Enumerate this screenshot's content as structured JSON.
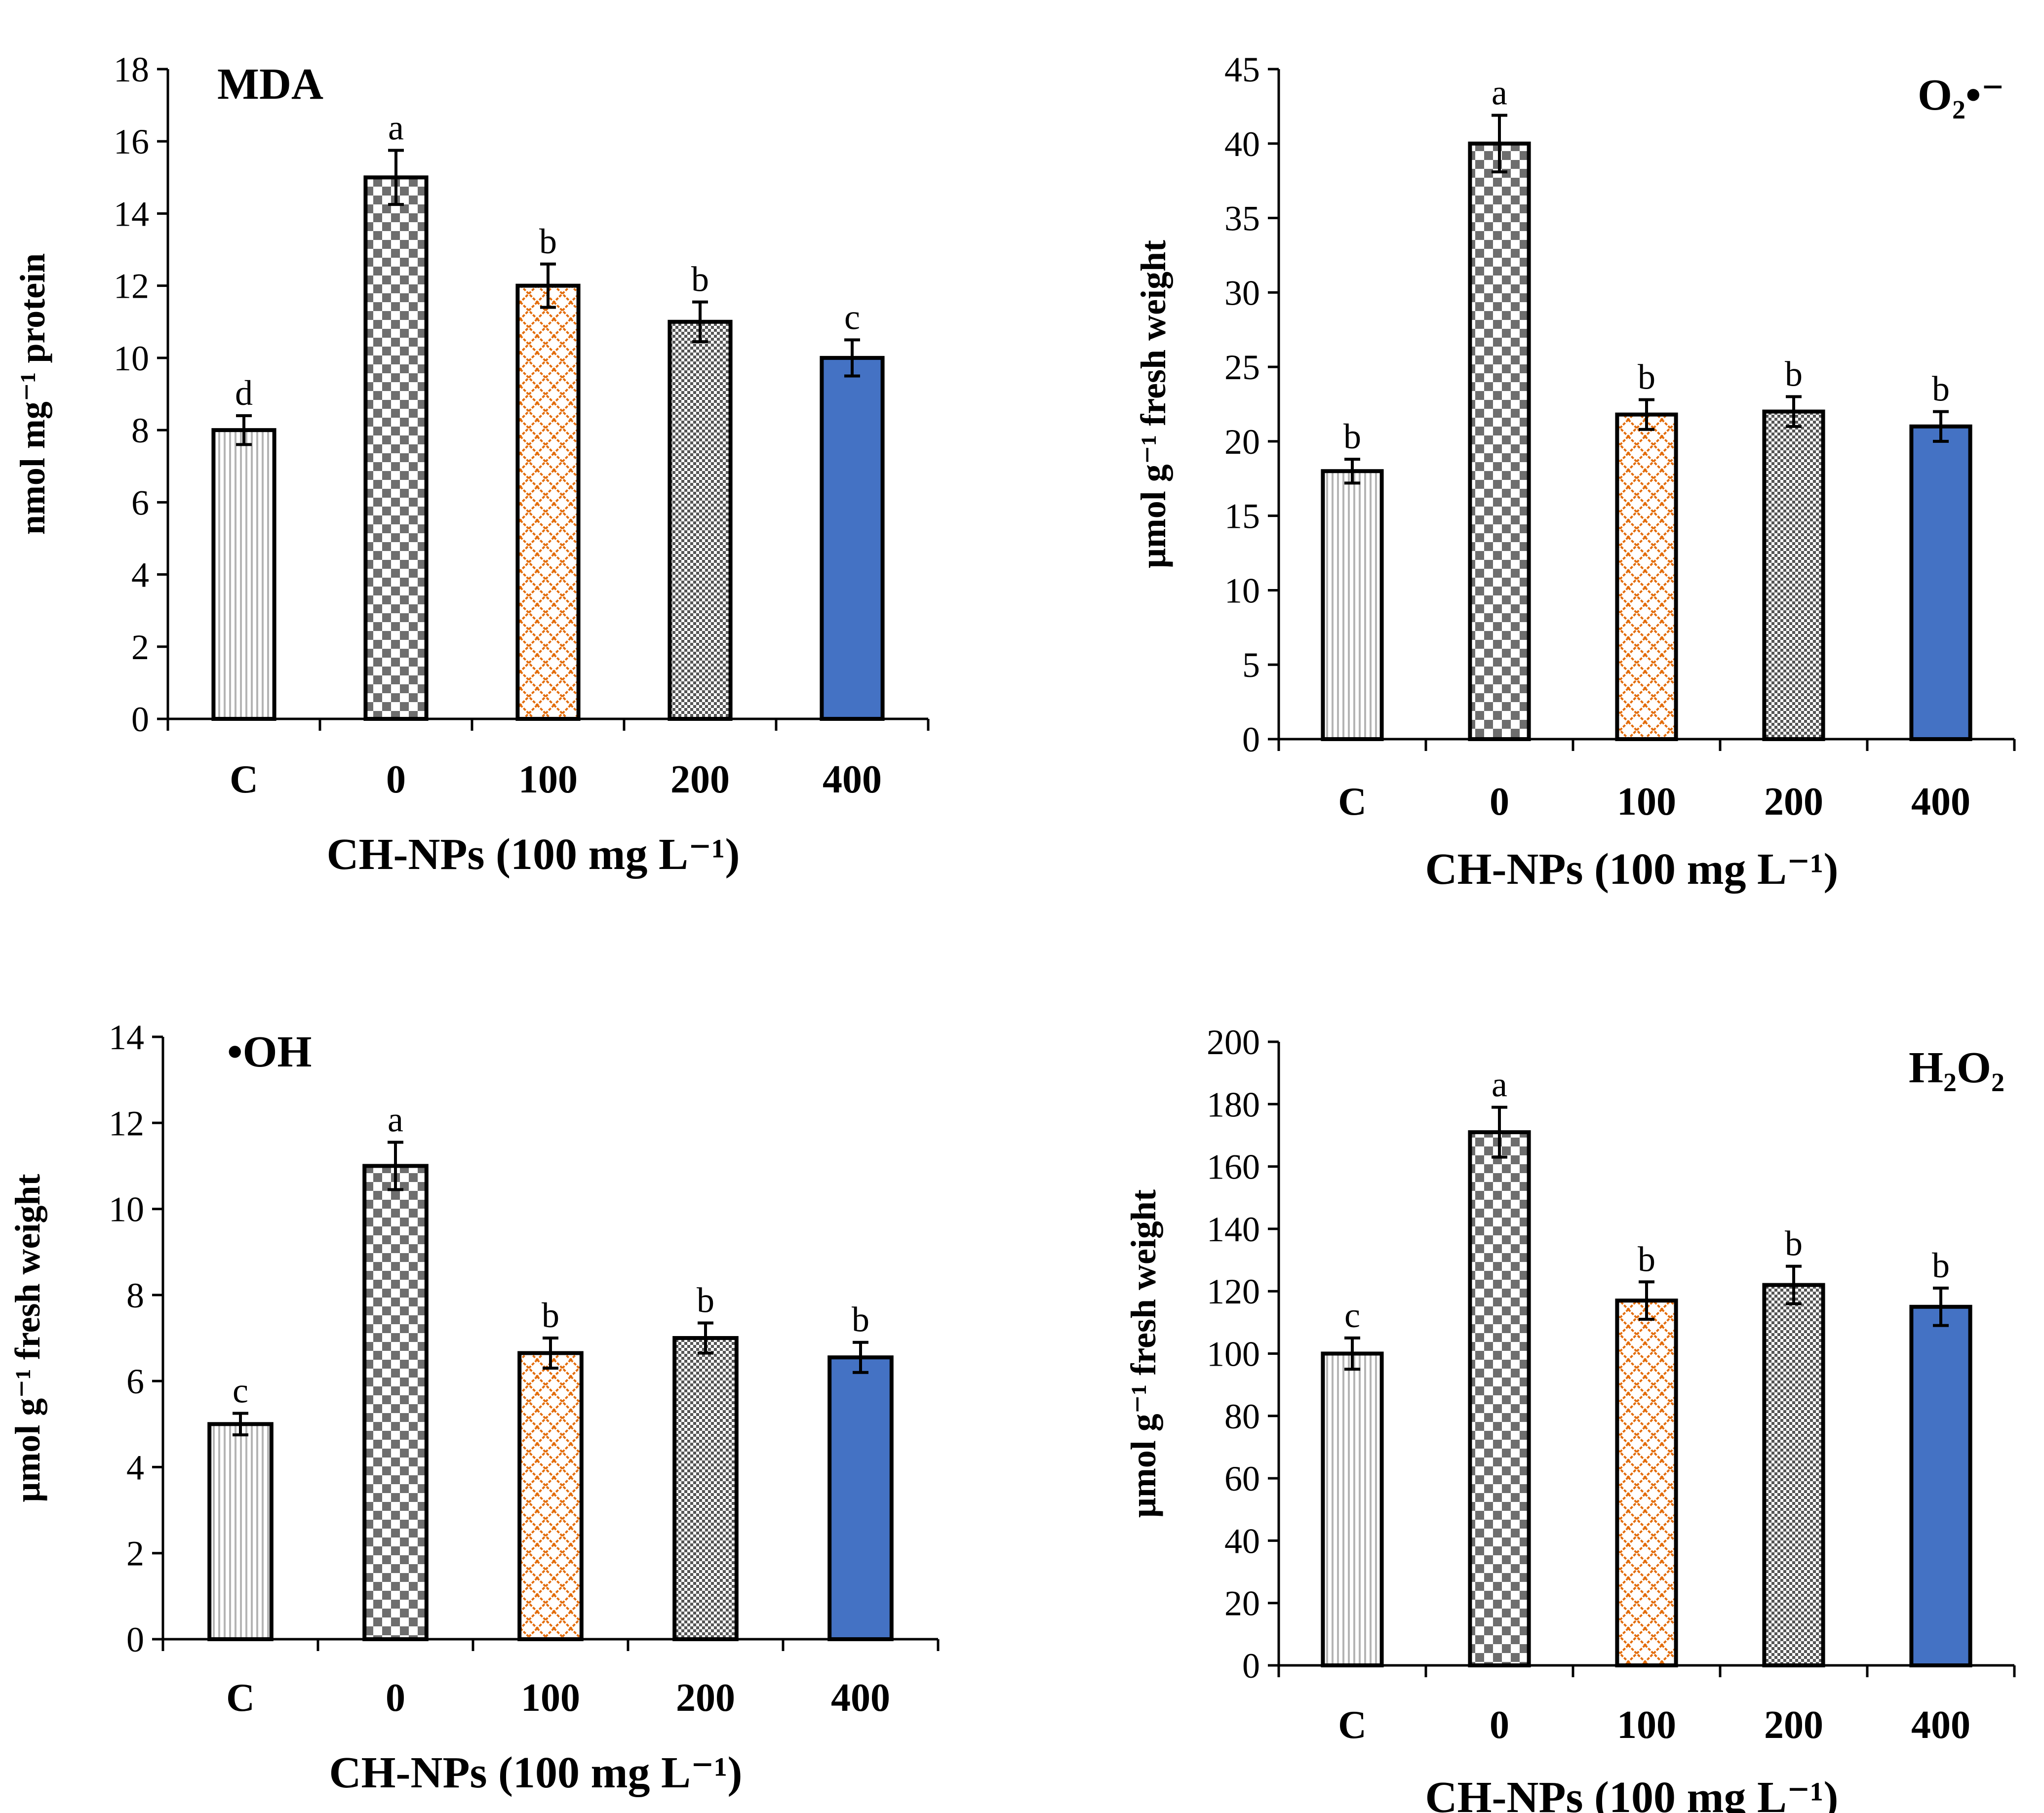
{
  "x_axis_title": "CH-NPs (100 mg L⁻¹)",
  "categories": [
    "C",
    "0",
    "100",
    "200",
    "400"
  ],
  "bar_fill_palette": [
    "#ffffff",
    "#ffffff",
    "#ffffff",
    "#ffffff",
    "#4472C4"
  ],
  "pattern_colors": {
    "vertical_lines": "#b4b4b4",
    "checker_dark": "#6e6e6e",
    "lattice": "#e36c0a",
    "fine_checker": "#555555",
    "solid_fill": "#4472C4"
  },
  "chart_data": [
    {
      "type": "bar",
      "title": "MDA",
      "title_position": "top-left",
      "ylabel": "nmol mg⁻¹ protein",
      "xlabel": "CH-NPs (100 mg L⁻¹)",
      "categories": [
        "C",
        "0",
        "100",
        "200",
        "400"
      ],
      "values": [
        8,
        15,
        12,
        11,
        10
      ],
      "errors": [
        0.4,
        0.75,
        0.6,
        0.55,
        0.5
      ],
      "letters": [
        "d",
        "a",
        "b",
        "b",
        "c"
      ],
      "ylim": [
        0,
        18
      ],
      "yticks": [
        0,
        2,
        4,
        6,
        8,
        10,
        12,
        14,
        16,
        18
      ]
    },
    {
      "type": "bar",
      "title": "O₂•⁻",
      "title_position": "top-right",
      "ylabel": "μmol g⁻¹ fresh weight",
      "xlabel": "CH-NPs (100 mg L⁻¹)",
      "categories": [
        "C",
        "0",
        "100",
        "200",
        "400"
      ],
      "values": [
        18,
        40,
        21.8,
        22,
        21
      ],
      "errors": [
        0.8,
        1.9,
        1.0,
        1.0,
        1.0
      ],
      "letters": [
        "b",
        "a",
        "b",
        "b",
        "b"
      ],
      "ylim": [
        0,
        45
      ],
      "yticks": [
        0,
        5,
        10,
        15,
        20,
        25,
        30,
        35,
        40,
        45
      ]
    },
    {
      "type": "bar",
      "title": "•OH",
      "title_position": "top-left",
      "ylabel": "μmol g⁻¹ fresh weight",
      "xlabel": "CH-NPs (100 mg L⁻¹)",
      "categories": [
        "C",
        "0",
        "100",
        "200",
        "400"
      ],
      "values": [
        5,
        11,
        6.65,
        7,
        6.55
      ],
      "errors": [
        0.25,
        0.55,
        0.35,
        0.35,
        0.35
      ],
      "letters": [
        "c",
        "a",
        "b",
        "b",
        "b"
      ],
      "ylim": [
        0,
        14
      ],
      "yticks": [
        0,
        2,
        4,
        6,
        8,
        10,
        12,
        14
      ]
    },
    {
      "type": "bar",
      "title": "H₂O₂",
      "title_position": "top-right",
      "ylabel": "μmol g⁻¹ fresh weight",
      "xlabel": "CH-NPs (100 mg L⁻¹)",
      "categories": [
        "C",
        "0",
        "100",
        "200",
        "400"
      ],
      "values": [
        100,
        171,
        117,
        122,
        115
      ],
      "errors": [
        5,
        8,
        6,
        6,
        6
      ],
      "letters": [
        "c",
        "a",
        "b",
        "b",
        "b"
      ],
      "ylim": [
        0,
        200
      ],
      "yticks": [
        0,
        20,
        40,
        60,
        80,
        100,
        120,
        140,
        160,
        180,
        200
      ]
    }
  ]
}
